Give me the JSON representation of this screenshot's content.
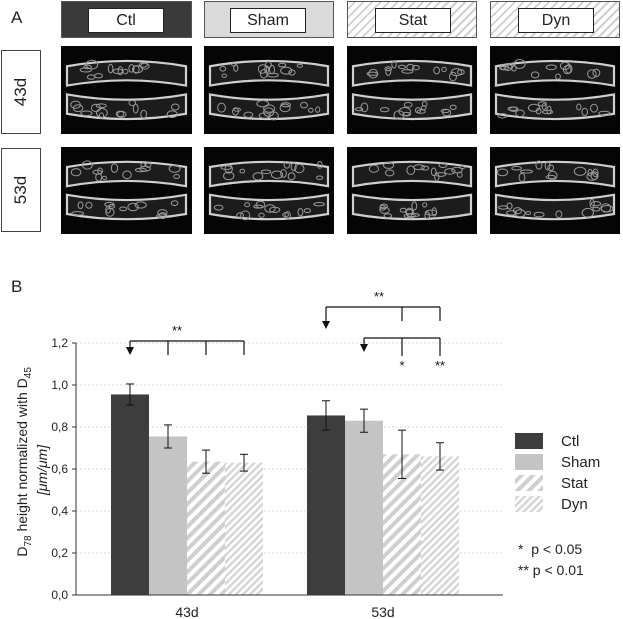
{
  "panel_a": {
    "letter": "A",
    "groups": [
      {
        "label": "Ctl",
        "style": "dark"
      },
      {
        "label": "Sham",
        "style": "light"
      },
      {
        "label": "Stat",
        "style": "hatch"
      },
      {
        "label": "Dyn",
        "style": "hatch"
      }
    ],
    "days": [
      "43d",
      "53d"
    ]
  },
  "panel_b": {
    "letter": "B",
    "significance_notes": [
      "*  p < 0.05",
      "** p < 0.01"
    ]
  },
  "chart_data": {
    "type": "bar",
    "categories": [
      "43d",
      "53d"
    ],
    "ylabel_main": "D",
    "ylabel_sub1": "78",
    "ylabel_mid": " height normalized with D",
    "ylabel_sub2": "45",
    "ylabel_units": "[μm/μm]",
    "ylim": [
      0,
      1.2
    ],
    "yticks": [
      "0,0",
      "0,2",
      "0,4",
      "0,6",
      "0,8",
      "1,0",
      "1,2"
    ],
    "ytick_values": [
      0,
      0.2,
      0.4,
      0.6,
      0.8,
      1.0,
      1.2
    ],
    "grid": true,
    "legend_position": "right",
    "series": [
      {
        "name": "Ctl",
        "values": [
          0.955,
          0.855
        ],
        "errors": [
          0.05,
          0.07
        ],
        "color": "#3d3d3d",
        "fill": "solid"
      },
      {
        "name": "Sham",
        "values": [
          0.755,
          0.83
        ],
        "errors": [
          0.055,
          0.055
        ],
        "color": "#c4c4c4",
        "fill": "solid"
      },
      {
        "name": "Stat",
        "values": [
          0.635,
          0.67
        ],
        "errors": [
          0.055,
          0.115
        ],
        "color": "#d0d0d0",
        "fill": "hatch"
      },
      {
        "name": "Dyn",
        "values": [
          0.63,
          0.66
        ],
        "errors": [
          0.04,
          0.065
        ],
        "color": "#d9d9d9",
        "fill": "hatch-fine"
      }
    ],
    "annotations": {
      "group1_star": "**",
      "group2_top_star": "**",
      "group2_star_single": "*",
      "group2_star_double": "**"
    }
  }
}
